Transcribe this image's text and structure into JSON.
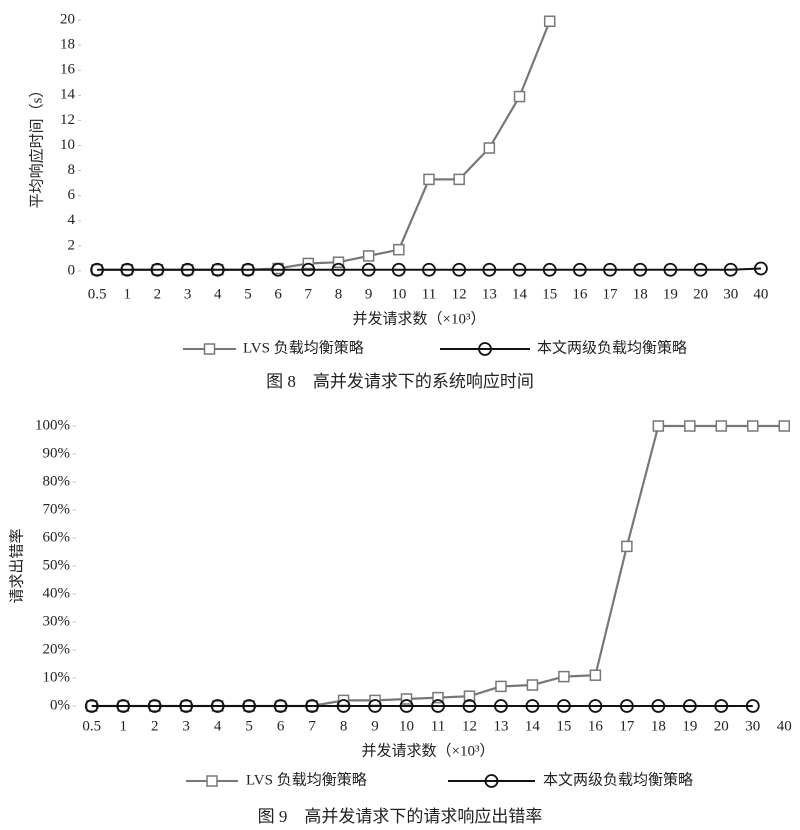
{
  "chart_data": [
    {
      "type": "line",
      "title": "图 8　高并发请求下的系统响应时间",
      "x_label": "并发请求数（×10³）",
      "y_label": "平均响应时间（s）",
      "categories": [
        "0.5",
        "1",
        "2",
        "3",
        "4",
        "5",
        "6",
        "7",
        "8",
        "9",
        "10",
        "11",
        "12",
        "13",
        "14",
        "15",
        "16",
        "17",
        "18",
        "19",
        "20",
        "30",
        "40"
      ],
      "series": [
        {
          "name": "LVS 负载均衡策略",
          "color": "#777777",
          "marker": "square",
          "values": [
            0.1,
            0.1,
            0.1,
            0.1,
            0.1,
            0.1,
            0.2,
            0.6,
            0.7,
            1.2,
            1.7,
            7.3,
            7.3,
            9.8,
            13.9,
            19.9,
            null,
            null,
            null,
            null,
            null,
            null,
            null
          ]
        },
        {
          "name": "本文两级负载均衡策略",
          "color": "#111111",
          "marker": "circle",
          "values": [
            0.1,
            0.1,
            0.1,
            0.1,
            0.1,
            0.1,
            0.1,
            0.1,
            0.1,
            0.1,
            0.1,
            0.1,
            0.1,
            0.1,
            0.1,
            0.1,
            0.1,
            0.1,
            0.1,
            0.1,
            0.1,
            0.1,
            0.2
          ]
        }
      ],
      "ylim": [
        0,
        20
      ],
      "yticks": [
        0,
        2,
        4,
        6,
        8,
        10,
        12,
        14,
        16,
        18,
        20
      ],
      "grid": false
    },
    {
      "type": "line",
      "title": "图 9　高并发请求下的请求响应出错率",
      "x_label": "并发请求数（×10³）",
      "y_label": "请求出错率",
      "categories": [
        "0.5",
        "1",
        "2",
        "3",
        "4",
        "5",
        "6",
        "7",
        "8",
        "9",
        "10",
        "11",
        "12",
        "13",
        "14",
        "15",
        "16",
        "17",
        "18",
        "19",
        "20",
        "30",
        "40"
      ],
      "series": [
        {
          "name": "LVS 负载均衡策略",
          "color": "#777777",
          "marker": "square",
          "values": [
            0,
            0,
            0,
            0,
            0,
            0,
            0,
            0,
            2,
            2,
            2.5,
            3,
            3.5,
            7,
            7.5,
            10.5,
            11,
            57,
            100,
            100,
            100,
            100,
            100
          ]
        },
        {
          "name": "本文两级负载均衡策略",
          "color": "#111111",
          "marker": "circle",
          "values": [
            0,
            0,
            0,
            0,
            0,
            0,
            0,
            0,
            0,
            0,
            0,
            0,
            0,
            0,
            0,
            0,
            0,
            0,
            0,
            0,
            0,
            0,
            null
          ]
        }
      ],
      "ylim": [
        0,
        100
      ],
      "yticks": [
        {
          "value": 0,
          "label": "0%"
        },
        {
          "value": 10,
          "label": "10%"
        },
        {
          "value": 20,
          "label": "20%"
        },
        {
          "value": 30,
          "label": "30%"
        },
        {
          "value": 40,
          "label": "40%"
        },
        {
          "value": 50,
          "label": "50%"
        },
        {
          "value": 60,
          "label": "60%"
        },
        {
          "value": 70,
          "label": "70%"
        },
        {
          "value": 80,
          "label": "80%"
        },
        {
          "value": 90,
          "label": "90%"
        },
        {
          "value": 100,
          "label": "100%"
        }
      ],
      "grid": false
    }
  ]
}
